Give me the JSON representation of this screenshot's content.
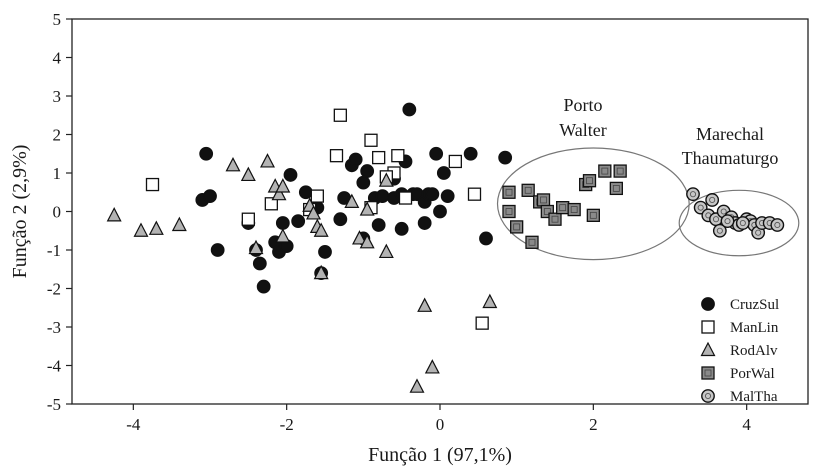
{
  "chart_data": {
    "type": "scatter",
    "title": "",
    "xlabel": "Função 1 (97,1%)",
    "ylabel": "Função 2 (2,9%)",
    "xlim": [
      -4.8,
      4.8
    ],
    "ylim": [
      -5,
      5
    ],
    "xticks": [
      -4,
      -2,
      0,
      2,
      4
    ],
    "yticks": [
      -5,
      -4,
      -3,
      -2,
      -1,
      0,
      1,
      2,
      3,
      4,
      5
    ],
    "grid": false,
    "legend_position": "bottom-right",
    "series": [
      {
        "name": "CruzSul",
        "marker": "circle",
        "fill": "#111111",
        "points": [
          [
            -3.05,
            1.5
          ],
          [
            -3.1,
            0.3
          ],
          [
            -3.0,
            0.4
          ],
          [
            -2.9,
            -1.0
          ],
          [
            -2.5,
            -0.3
          ],
          [
            -2.4,
            -1.0
          ],
          [
            -2.35,
            -1.35
          ],
          [
            -2.3,
            -1.95
          ],
          [
            -2.15,
            -0.8
          ],
          [
            -2.1,
            -1.05
          ],
          [
            -2.05,
            -0.3
          ],
          [
            -2.0,
            -0.9
          ],
          [
            -1.95,
            0.95
          ],
          [
            -1.85,
            -0.25
          ],
          [
            -1.75,
            0.5
          ],
          [
            -1.6,
            0.1
          ],
          [
            -1.55,
            -1.6
          ],
          [
            -1.5,
            -1.05
          ],
          [
            -1.3,
            -0.2
          ],
          [
            -1.25,
            0.35
          ],
          [
            -1.15,
            1.2
          ],
          [
            -1.1,
            1.35
          ],
          [
            -1.0,
            0.75
          ],
          [
            -1.0,
            -0.7
          ],
          [
            -0.95,
            1.05
          ],
          [
            -0.85,
            0.35
          ],
          [
            -0.8,
            -0.35
          ],
          [
            -0.75,
            0.4
          ],
          [
            -0.6,
            0.85
          ],
          [
            -0.6,
            0.35
          ],
          [
            -0.5,
            0.45
          ],
          [
            -0.45,
            1.3
          ],
          [
            -0.35,
            0.45
          ],
          [
            -0.3,
            0.45
          ],
          [
            -0.2,
            0.25
          ],
          [
            -0.15,
            0.45
          ],
          [
            -0.1,
            0.45
          ],
          [
            -0.05,
            1.5
          ],
          [
            0.0,
            0.0
          ],
          [
            0.1,
            0.4
          ],
          [
            -0.4,
            2.65
          ],
          [
            0.05,
            1.0
          ],
          [
            0.4,
            1.5
          ],
          [
            0.6,
            -0.7
          ],
          [
            0.85,
            1.4
          ],
          [
            -0.5,
            -0.45
          ],
          [
            -0.2,
            -0.3
          ]
        ]
      },
      {
        "name": "ManLin",
        "marker": "square",
        "fill": "#ffffff",
        "points": [
          [
            -3.75,
            0.7
          ],
          [
            -2.5,
            -0.2
          ],
          [
            -2.2,
            0.2
          ],
          [
            -1.7,
            0.05
          ],
          [
            -1.6,
            0.4
          ],
          [
            -1.35,
            1.45
          ],
          [
            -1.3,
            2.5
          ],
          [
            -0.9,
            0.1
          ],
          [
            -0.9,
            1.85
          ],
          [
            -0.8,
            1.4
          ],
          [
            -0.6,
            1.0
          ],
          [
            -0.55,
            1.45
          ],
          [
            -0.45,
            0.35
          ],
          [
            0.2,
            1.3
          ],
          [
            0.45,
            0.45
          ],
          [
            0.55,
            -2.9
          ],
          [
            -0.7,
            0.9
          ]
        ]
      },
      {
        "name": "RodAlv",
        "marker": "triangle",
        "fill": "#b3b3b3",
        "points": [
          [
            -4.25,
            -0.1
          ],
          [
            -3.9,
            -0.5
          ],
          [
            -3.7,
            -0.45
          ],
          [
            -3.4,
            -0.35
          ],
          [
            -2.7,
            1.2
          ],
          [
            -2.5,
            0.95
          ],
          [
            -2.4,
            -0.95
          ],
          [
            -2.25,
            1.3
          ],
          [
            -2.15,
            0.65
          ],
          [
            -2.1,
            0.45
          ],
          [
            -2.05,
            0.65
          ],
          [
            -2.05,
            -0.65
          ],
          [
            -1.7,
            0.15
          ],
          [
            -1.65,
            -0.05
          ],
          [
            -1.6,
            -0.4
          ],
          [
            -1.55,
            -0.5
          ],
          [
            -1.55,
            -1.6
          ],
          [
            -1.15,
            0.25
          ],
          [
            -1.05,
            -0.7
          ],
          [
            -0.95,
            0.05
          ],
          [
            -0.95,
            -0.8
          ],
          [
            -0.7,
            0.8
          ],
          [
            -0.7,
            -1.05
          ],
          [
            -0.2,
            -2.45
          ],
          [
            -0.3,
            -4.55
          ],
          [
            -0.1,
            -4.05
          ],
          [
            0.65,
            -2.35
          ]
        ]
      },
      {
        "name": "PorWal",
        "marker": "square",
        "fill": "#8a8a8a",
        "points": [
          [
            0.9,
            0.5
          ],
          [
            0.9,
            0.0
          ],
          [
            1.0,
            -0.4
          ],
          [
            1.15,
            0.55
          ],
          [
            1.2,
            -0.8
          ],
          [
            1.3,
            0.25
          ],
          [
            1.35,
            0.3
          ],
          [
            1.4,
            0.0
          ],
          [
            1.5,
            -0.2
          ],
          [
            1.6,
            0.1
          ],
          [
            1.9,
            0.7
          ],
          [
            1.95,
            0.8
          ],
          [
            2.0,
            -0.1
          ],
          [
            2.15,
            1.05
          ],
          [
            2.3,
            0.6
          ],
          [
            2.35,
            1.05
          ],
          [
            1.75,
            0.05
          ]
        ]
      },
      {
        "name": "MalTha",
        "marker": "circle",
        "fill": "#c6c6c6",
        "points": [
          [
            3.3,
            0.45
          ],
          [
            3.4,
            0.1
          ],
          [
            3.5,
            -0.1
          ],
          [
            3.55,
            0.3
          ],
          [
            3.6,
            -0.2
          ],
          [
            3.65,
            -0.5
          ],
          [
            3.7,
            0.0
          ],
          [
            3.8,
            -0.15
          ],
          [
            3.85,
            -0.3
          ],
          [
            3.9,
            -0.35
          ],
          [
            4.0,
            -0.2
          ],
          [
            4.05,
            -0.25
          ],
          [
            4.1,
            -0.35
          ],
          [
            4.15,
            -0.55
          ],
          [
            4.2,
            -0.3
          ],
          [
            4.3,
            -0.3
          ],
          [
            4.4,
            -0.35
          ],
          [
            3.75,
            -0.25
          ],
          [
            3.95,
            -0.3
          ]
        ]
      }
    ],
    "annotations": [
      {
        "lines": [
          "Porto",
          "Walter"
        ],
        "ellipse": {
          "cx": 2.0,
          "cy": 0.2,
          "rx": 1.25,
          "ry": 1.45
        }
      },
      {
        "lines": [
          "Marechal",
          "Thaumaturgo"
        ],
        "ellipse": {
          "cx": 3.9,
          "cy": -0.3,
          "rx": 0.78,
          "ry": 0.85
        }
      }
    ]
  }
}
